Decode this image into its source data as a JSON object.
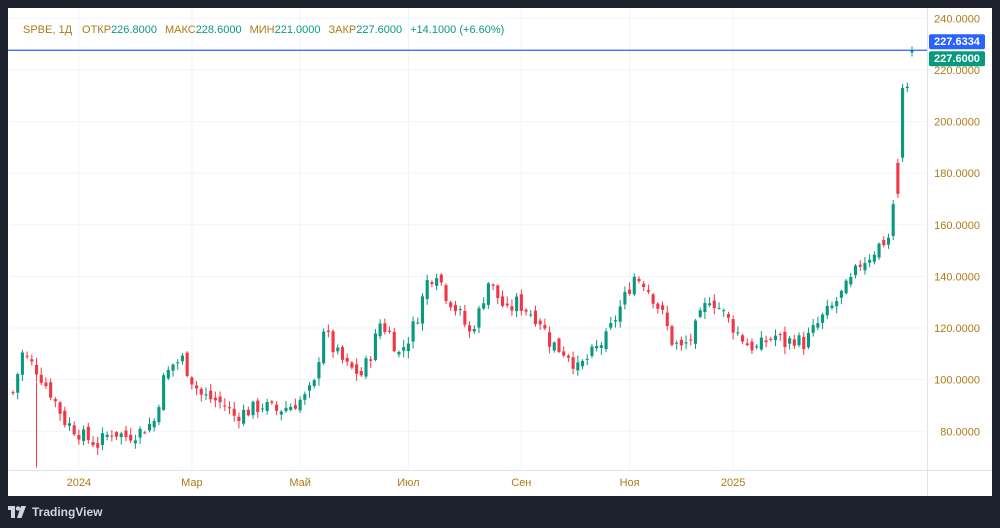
{
  "legend": {
    "symbol": "SPBE, 1Д",
    "open_label": "ОТКР",
    "open_value": "226.8000",
    "high_label": "МАКС",
    "high_value": "228.6000",
    "low_label": "МИН",
    "low_value": "221.0000",
    "close_label": "ЗАКР",
    "close_value": "227.6000",
    "change": "+14.1000 (+6.60%)"
  },
  "branding": {
    "name": "TradingView",
    "icon": "tradingview-logo-icon"
  },
  "colors": {
    "up": "#089981",
    "down": "#f23645",
    "price_line": "#2962ff",
    "axis_text": "#b07a18",
    "background": "#ffffff",
    "grid": "#f0f3fa"
  },
  "chart_data": {
    "type": "candlestick",
    "title": "",
    "xlabel": "",
    "ylabel": "",
    "ylim": [
      65,
      244
    ],
    "y_ticks": [
      "80.0000",
      "100.0000",
      "120.0000",
      "140.0000",
      "160.0000",
      "180.0000",
      "200.0000",
      "220.0000",
      "240.0000"
    ],
    "x_ticks": [
      "2024",
      "Мар",
      "Май",
      "Июл",
      "Сен",
      "Ноя",
      "2025"
    ],
    "price_markers": [
      {
        "label": "227.6334",
        "value": 227.6334,
        "color": "#2962ff"
      },
      {
        "label": "227.6000",
        "value": 227.6,
        "color": "#089981"
      }
    ],
    "price_line": 227.6334,
    "grid": true,
    "approx_close_path": [
      [
        0,
        95
      ],
      [
        2,
        110
      ],
      [
        5,
        104
      ],
      [
        8,
        95
      ],
      [
        11,
        84
      ],
      [
        15,
        78
      ],
      [
        18,
        75
      ],
      [
        21,
        80
      ],
      [
        24,
        78
      ],
      [
        27,
        80
      ],
      [
        30,
        84
      ],
      [
        32,
        100
      ],
      [
        34,
        106
      ],
      [
        36,
        108
      ],
      [
        38,
        100
      ],
      [
        40,
        94
      ],
      [
        43,
        92
      ],
      [
        45,
        90
      ],
      [
        47,
        86
      ],
      [
        50,
        88
      ],
      [
        53,
        90
      ],
      [
        56,
        88
      ],
      [
        59,
        90
      ],
      [
        62,
        93
      ],
      [
        64,
        98
      ],
      [
        66,
        120
      ],
      [
        68,
        112
      ],
      [
        71,
        105
      ],
      [
        74,
        102
      ],
      [
        76,
        110
      ],
      [
        78,
        122
      ],
      [
        80,
        118
      ],
      [
        82,
        110
      ],
      [
        84,
        116
      ],
      [
        86,
        125
      ],
      [
        88,
        138
      ],
      [
        90,
        142
      ],
      [
        92,
        133
      ],
      [
        95,
        125
      ],
      [
        97,
        118
      ],
      [
        99,
        126
      ],
      [
        101,
        138
      ],
      [
        103,
        132
      ],
      [
        105,
        126
      ],
      [
        107,
        130
      ],
      [
        110,
        126
      ],
      [
        112,
        123
      ],
      [
        114,
        115
      ],
      [
        116,
        112
      ],
      [
        118,
        110
      ],
      [
        120,
        104
      ],
      [
        122,
        108
      ],
      [
        124,
        112
      ],
      [
        126,
        116
      ],
      [
        128,
        124
      ],
      [
        130,
        132
      ],
      [
        132,
        140
      ],
      [
        134,
        138
      ],
      [
        136,
        132
      ],
      [
        138,
        125
      ],
      [
        140,
        115
      ],
      [
        142,
        112
      ],
      [
        144,
        116
      ],
      [
        146,
        124
      ],
      [
        148,
        132
      ],
      [
        150,
        128
      ],
      [
        152,
        123
      ],
      [
        154,
        118
      ],
      [
        156,
        114
      ],
      [
        158,
        112
      ],
      [
        160,
        115
      ],
      [
        162,
        117
      ],
      [
        164,
        114
      ],
      [
        166,
        116
      ],
      [
        168,
        114
      ],
      [
        170,
        119
      ],
      [
        172,
        124
      ],
      [
        174,
        128
      ],
      [
        176,
        133
      ],
      [
        178,
        138
      ],
      [
        180,
        145
      ],
      [
        182,
        148
      ],
      [
        184,
        152
      ],
      [
        186,
        155
      ],
      [
        187,
        168
      ],
      [
        188,
        180
      ],
      [
        189,
        203
      ],
      [
        190,
        213.5
      ],
      [
        191,
        227.6
      ]
    ]
  }
}
